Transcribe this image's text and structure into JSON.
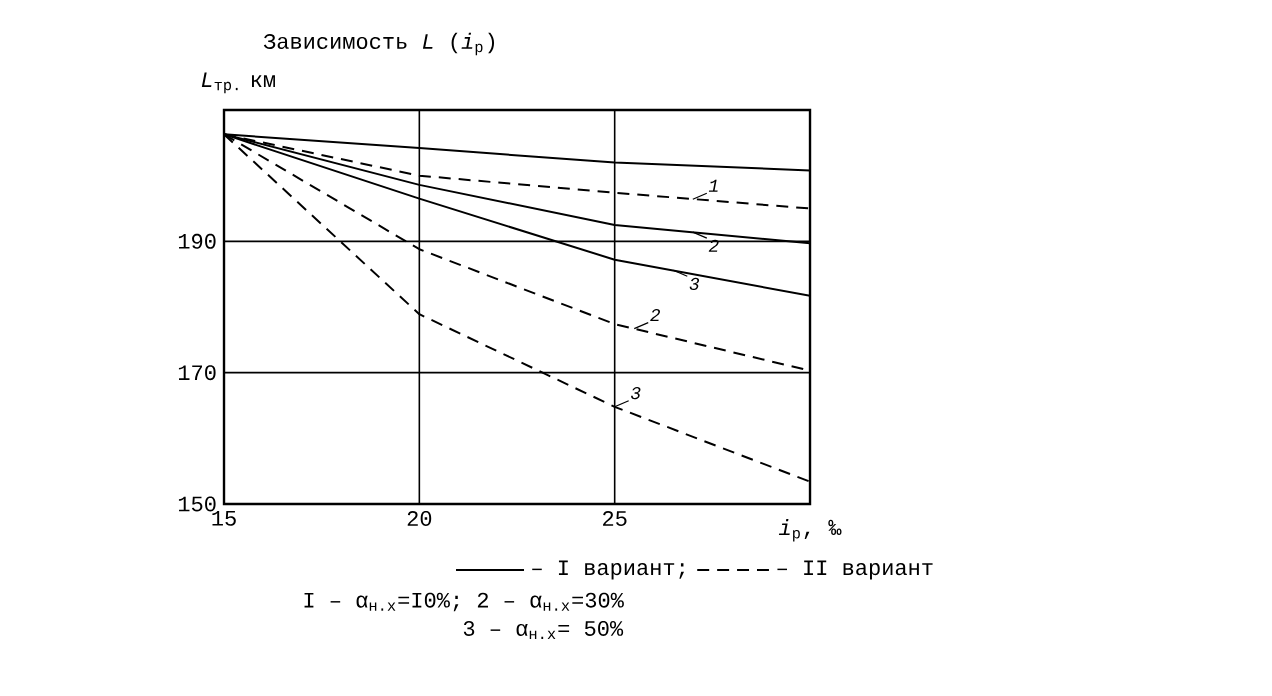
{
  "chart_data": {
    "type": "line",
    "title": "Зависимость *L* (*i*$_{p}$)",
    "xlabel": "*i*$_{p}$, ‰",
    "ylabel": "*L*$_{тр.}$ км",
    "x": [
      15,
      20,
      25,
      30
    ],
    "xlim": [
      15,
      30
    ],
    "ylim": [
      150,
      210
    ],
    "xticks": [
      15,
      20,
      25
    ],
    "yticks": [
      150,
      170,
      190
    ],
    "grid": true,
    "series": [
      {
        "color": "#000000",
        "line_style": "solid",
        "values": [
          206.3,
          204.2,
          202,
          200.8
        ]
      },
      {
        "color": "#000000",
        "line_style": "dashed",
        "values": [
          206.3,
          200,
          197.4,
          195
        ]
      },
      {
        "color": "#000000",
        "line_style": "solid",
        "values": [
          206.3,
          198.6,
          192.5,
          189.7
        ]
      },
      {
        "color": "#000000",
        "line_style": "solid",
        "values": [
          206.3,
          196.5,
          187.2,
          181.7
        ]
      },
      {
        "color": "#000000",
        "line_style": "dashed",
        "values": [
          206.3,
          188.8,
          177.4,
          170.3
        ]
      },
      {
        "color": "#000000",
        "line_style": "dashed",
        "values": [
          206.3,
          178.9,
          164.8,
          153.4
        ]
      }
    ],
    "annotations": [
      {
        "text": "1",
        "x": 27,
        "y": 196.4
      },
      {
        "text": "2",
        "x": 27,
        "y": 191.4
      },
      {
        "text": "3",
        "x": 26.5,
        "y": 185.6
      },
      {
        "text": "2",
        "x": 25.5,
        "y": 176.7
      },
      {
        "text": "3",
        "x": 25,
        "y": 164.8
      },
      "– I вариант;",
      "– II вариант",
      "I – α$_{н.х}$=I0%; 2 – α$_{н.х}$=30%",
      "3 – α$_{н.х}$= 50%"
    ]
  }
}
